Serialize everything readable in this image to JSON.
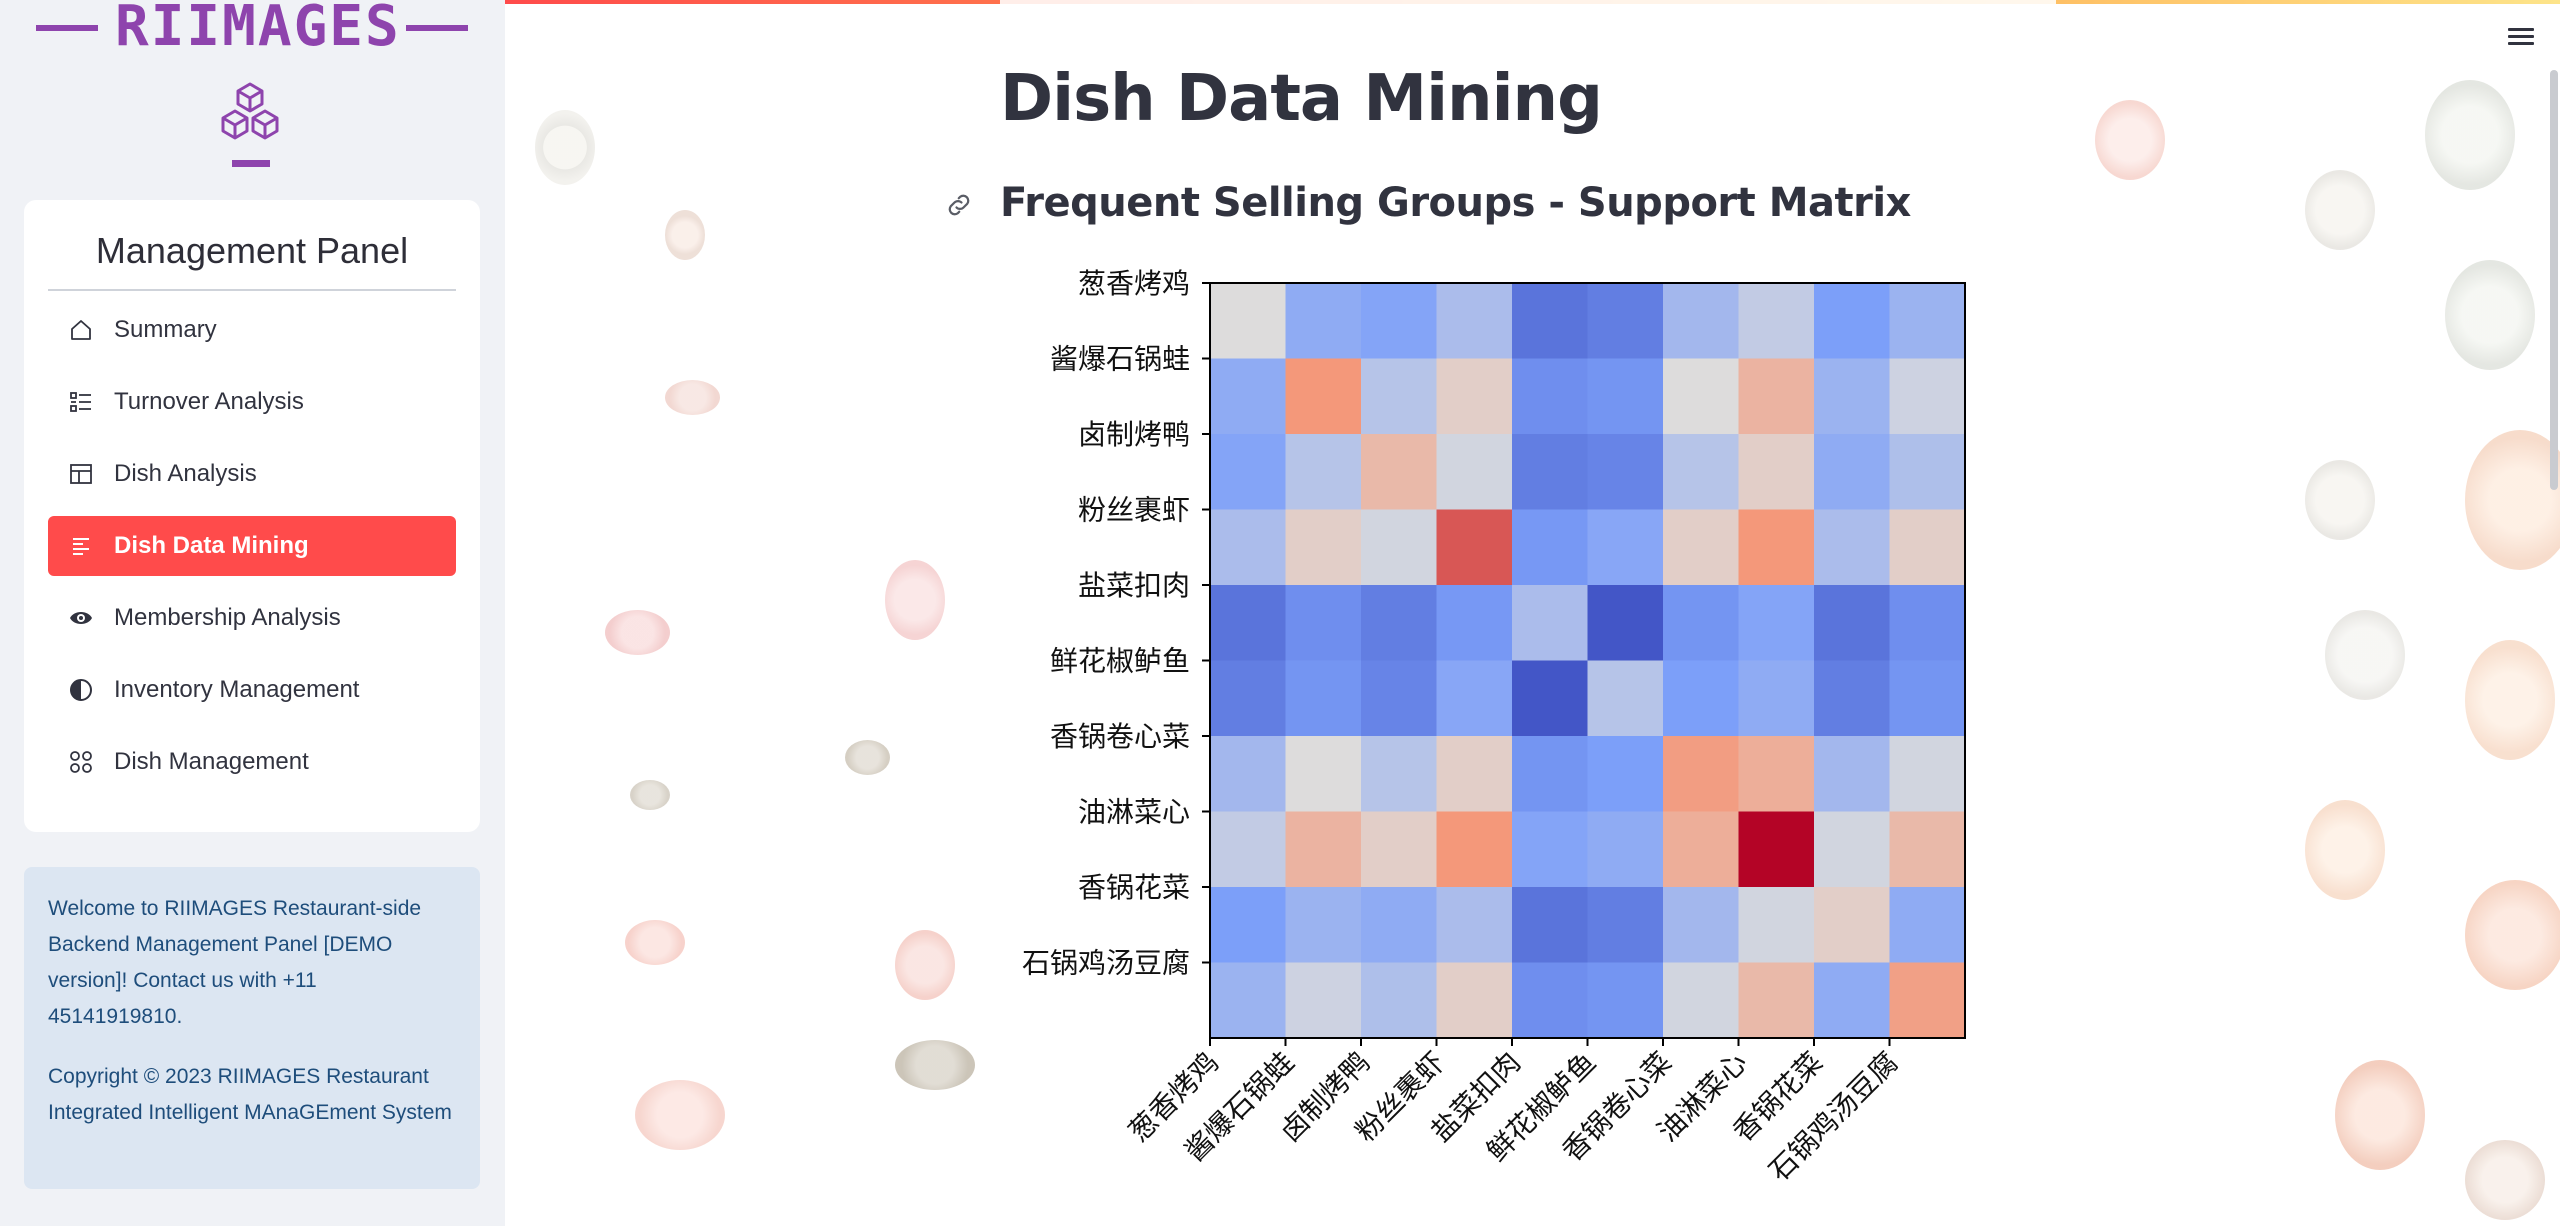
{
  "brand": {
    "title": "RIIMAGES",
    "accent": "#8e44ad"
  },
  "sidebar": {
    "panel_title": "Management Panel",
    "items": [
      {
        "label": "Summary",
        "icon": "home-icon",
        "active": false
      },
      {
        "label": "Turnover Analysis",
        "icon": "list-icon",
        "active": false
      },
      {
        "label": "Dish Analysis",
        "icon": "layout-icon",
        "active": false
      },
      {
        "label": "Dish Data Mining",
        "icon": "text-list-icon",
        "active": true
      },
      {
        "label": "Membership Analysis",
        "icon": "eye-icon",
        "active": false
      },
      {
        "label": "Inventory Management",
        "icon": "half-circle-icon",
        "active": false
      },
      {
        "label": "Dish Management",
        "icon": "apps-icon",
        "active": false
      }
    ],
    "info_welcome": "Welcome to RIIMAGES Restaurant-side Backend Management Panel [DEMO version]! Contact us with +11 45141919810.",
    "info_copyright": "Copyright © 2023 RIIMAGES Restaurant Integrated Intelligent MAnaGEment System"
  },
  "main": {
    "title": "Dish Data Mining",
    "subtitle": "Frequent Selling Groups - Support Matrix"
  },
  "colors": {
    "active": "#ff4b4b",
    "info_bg": "#dce6f2",
    "info_text": "#1e4d7b"
  },
  "chart_data": {
    "type": "heatmap",
    "title": "",
    "xlabel": "",
    "ylabel": "",
    "colormap": "coolwarm",
    "categories": [
      "葱香烤鸡",
      "酱爆石锅蛙",
      "卤制烤鸭",
      "粉丝裹虾",
      "盐菜扣肉",
      "鲜花椒鲈鱼",
      "香锅卷心菜",
      "油淋菜心",
      "香锅花菜",
      "石锅鸡汤豆腐"
    ],
    "values": [
      [
        0.5,
        0.3,
        0.27,
        0.37,
        0.12,
        0.15,
        0.35,
        0.43,
        0.25,
        0.33
      ],
      [
        0.3,
        0.75,
        0.4,
        0.55,
        0.2,
        0.22,
        0.5,
        0.65,
        0.33,
        0.46
      ],
      [
        0.27,
        0.4,
        0.63,
        0.47,
        0.15,
        0.17,
        0.4,
        0.55,
        0.3,
        0.38
      ],
      [
        0.37,
        0.55,
        0.47,
        0.86,
        0.23,
        0.28,
        0.55,
        0.75,
        0.37,
        0.55
      ],
      [
        0.12,
        0.2,
        0.15,
        0.23,
        0.37,
        0.03,
        0.22,
        0.27,
        0.12,
        0.2
      ],
      [
        0.15,
        0.22,
        0.17,
        0.28,
        0.03,
        0.4,
        0.25,
        0.3,
        0.15,
        0.22
      ],
      [
        0.35,
        0.5,
        0.4,
        0.55,
        0.22,
        0.25,
        0.73,
        0.67,
        0.35,
        0.47
      ],
      [
        0.43,
        0.65,
        0.55,
        0.75,
        0.27,
        0.3,
        0.67,
        1.0,
        0.47,
        0.63
      ],
      [
        0.25,
        0.33,
        0.3,
        0.37,
        0.12,
        0.15,
        0.35,
        0.47,
        0.55,
        0.3
      ],
      [
        0.33,
        0.46,
        0.38,
        0.55,
        0.2,
        0.22,
        0.47,
        0.63,
        0.3,
        0.72
      ]
    ]
  }
}
